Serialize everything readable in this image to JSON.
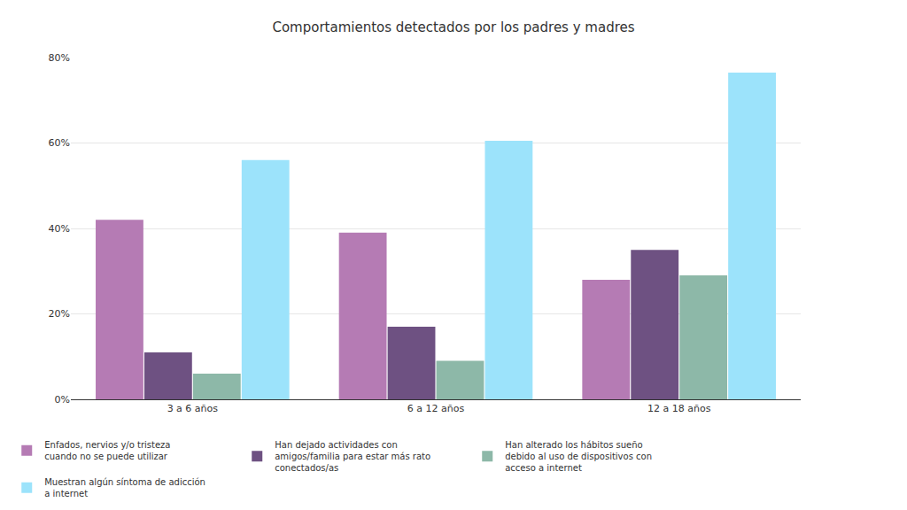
{
  "chart_data": {
    "type": "bar",
    "title": "Comportamientos detectados por los padres y madres",
    "categories": [
      "3 a 6 años",
      "6 a 12 años",
      "12 a 18 años"
    ],
    "series": [
      {
        "name": "Enfados, nervios y/o tristeza cuando no se puede utilizar",
        "color": "#b57bb4",
        "values": [
          42,
          39,
          28
        ]
      },
      {
        "name": "Han dejado actividades con amigos/familia para estar más rato conectados/as",
        "color": "#6e5182",
        "values": [
          11,
          17,
          35
        ]
      },
      {
        "name": "Han alterado los hábitos sueño debido al uso de dispositivos con acceso a internet",
        "color": "#8db8a8",
        "values": [
          6,
          9,
          29
        ]
      },
      {
        "name": "Muestran algún síntoma de adicción a internet",
        "color": "#9ce3fb",
        "values": [
          56,
          60.5,
          76.5
        ]
      }
    ],
    "ylim": [
      0,
      80
    ],
    "yticks": [
      {
        "value": 0,
        "label": "0%"
      },
      {
        "value": 20,
        "label": "20%"
      },
      {
        "value": 40,
        "label": "40%"
      },
      {
        "value": 60,
        "label": "60%"
      },
      {
        "value": 80,
        "label": "80%"
      }
    ],
    "grid": true,
    "legend": "bottom"
  }
}
